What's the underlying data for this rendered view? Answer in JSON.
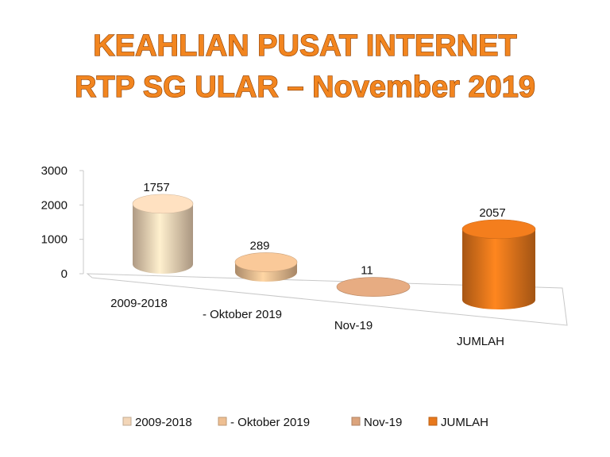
{
  "chart_data": {
    "type": "cylinder3d",
    "title": [
      "KEAHLIAN PUSAT INTERNET",
      "RTP SG ULAR – November 2019"
    ],
    "categories": [
      "2009-2018",
      "-  Oktober 2019",
      "Nov-19",
      "JUMLAH"
    ],
    "values": [
      1757,
      289,
      11,
      2057
    ],
    "colors": [
      "#f3d6b8",
      "#eebf92",
      "#dca47c",
      "#e8781c"
    ],
    "ylim": [
      0,
      3000
    ],
    "yticks": [
      0,
      1000,
      2000,
      3000
    ],
    "legend": "bottom"
  }
}
